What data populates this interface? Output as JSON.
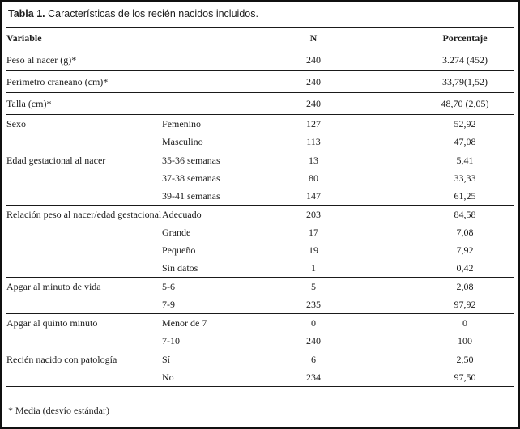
{
  "title": {
    "label": "Tabla 1.",
    "text": " Características de los recién nacidos incluidos."
  },
  "table": {
    "headers": {
      "variable": "Variable",
      "n": "N",
      "porcentaje": "Porcentaje"
    },
    "groups": [
      {
        "variable": "Peso al nacer (g)*",
        "rows": [
          {
            "sub": "",
            "n": "240",
            "pct": "3.274 (452)"
          }
        ]
      },
      {
        "variable": "Perímetro craneano (cm)*",
        "rows": [
          {
            "sub": "",
            "n": "240",
            "pct": "33,79(1,52)"
          }
        ]
      },
      {
        "variable": "Talla (cm)*",
        "rows": [
          {
            "sub": "",
            "n": "240",
            "pct": "48,70 (2,05)"
          }
        ]
      },
      {
        "variable": "Sexo",
        "rows": [
          {
            "sub": "Femenino",
            "n": "127",
            "pct": "52,92"
          },
          {
            "sub": "Masculino",
            "n": "113",
            "pct": "47,08"
          }
        ]
      },
      {
        "variable": "Edad gestacional al nacer",
        "rows": [
          {
            "sub": "35-36 semanas",
            "n": "13",
            "pct": "5,41"
          },
          {
            "sub": "37-38 semanas",
            "n": "80",
            "pct": "33,33"
          },
          {
            "sub": "39-41 semanas",
            "n": "147",
            "pct": "61,25"
          }
        ]
      },
      {
        "variable": "Relación peso al nacer/edad gestacional",
        "rows": [
          {
            "sub": "Adecuado",
            "n": "203",
            "pct": "84,58"
          },
          {
            "sub": "Grande",
            "n": "17",
            "pct": "7,08"
          },
          {
            "sub": "Pequeño",
            "n": "19",
            "pct": "7,92"
          },
          {
            "sub": "Sin datos",
            "n": "1",
            "pct": "0,42"
          }
        ]
      },
      {
        "variable": "Apgar al minuto de vida",
        "rows": [
          {
            "sub": "5-6",
            "n": "5",
            "pct": "2,08"
          },
          {
            "sub": "7-9",
            "n": "235",
            "pct": "97,92"
          }
        ]
      },
      {
        "variable": "Apgar al quinto minuto",
        "rows": [
          {
            "sub": "Menor de 7",
            "n": "0",
            "pct": "0"
          },
          {
            "sub": "7-10",
            "n": "240",
            "pct": "100"
          }
        ]
      },
      {
        "variable": "Recién nacido con patología",
        "rows": [
          {
            "sub": "Sí",
            "n": "6",
            "pct": "2,50"
          },
          {
            "sub": "No",
            "n": "234",
            "pct": "97,50"
          }
        ]
      }
    ]
  },
  "footnote": "* Media (desvío estándar)",
  "colors": {
    "background": "#ffffff",
    "text": "#1c1c1c",
    "rule_line": "#1a1a1a",
    "frame_border": "#101010"
  }
}
